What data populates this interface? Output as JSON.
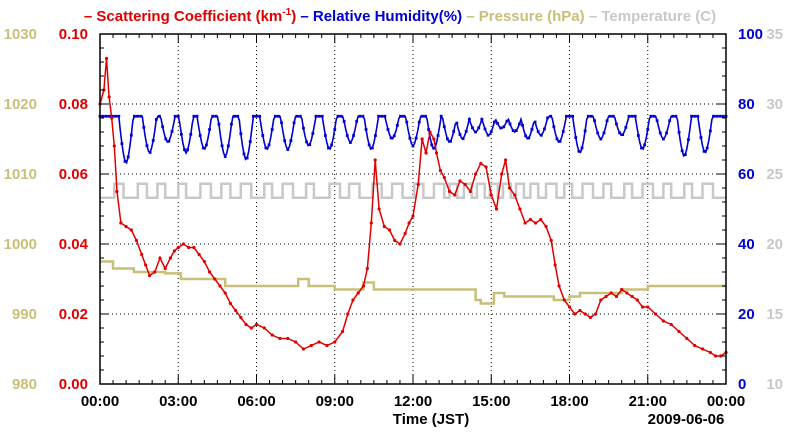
{
  "chart_data": {
    "type": "line",
    "date": "2009-06-06",
    "xlabel": "Time (JST)",
    "x_ticks": [
      "00:00",
      "03:00",
      "06:00",
      "09:00",
      "12:00",
      "15:00",
      "18:00",
      "21:00",
      "00:00"
    ],
    "x_range_hours": [
      0,
      24
    ],
    "grid": true,
    "legend": [
      {
        "prefix": "– ",
        "label": "Scattering Coefficient (km",
        "superscript": "-1",
        "suffix": ")",
        "color": "#e00000"
      },
      {
        "prefix": " – ",
        "label": "Relative Humidity(%)",
        "color": "#0000d0"
      },
      {
        "prefix": " – ",
        "label": "Pressure (hPa)",
        "color": "#c8bf78"
      },
      {
        "prefix": " – ",
        "label": "Temperature (C)",
        "color": "#c8c8c8"
      }
    ],
    "axes": {
      "pressure": {
        "label": "Pressure (hPa)",
        "ticks": [
          "980",
          "990",
          "1000",
          "1010",
          "1020",
          "1030"
        ],
        "range": [
          980,
          1030
        ],
        "color": "#c8bf78"
      },
      "scattering": {
        "label": "Scattering Coefficient (km-1)",
        "ticks": [
          "0.00",
          "0.02",
          "0.04",
          "0.06",
          "0.08",
          "0.10"
        ],
        "range": [
          0,
          0.1
        ],
        "color": "#e00000"
      },
      "humidity": {
        "label": "Relative Humidity(%)",
        "ticks": [
          "0",
          "20",
          "40",
          "60",
          "80",
          "100"
        ],
        "range": [
          0,
          100
        ],
        "color": "#0000d0"
      },
      "temperature": {
        "label": "Temperature (C)",
        "ticks": [
          "10",
          "15",
          "20",
          "25",
          "30",
          "35"
        ],
        "range": [
          10,
          35
        ],
        "color": "#c8c8c8"
      }
    },
    "series": [
      {
        "name": "Scattering Coefficient",
        "axis": "scattering",
        "color": "#e00000",
        "markers": true,
        "points": [
          [
            0.0,
            0.08
          ],
          [
            0.15,
            0.084
          ],
          [
            0.25,
            0.093
          ],
          [
            0.35,
            0.082
          ],
          [
            0.45,
            0.076
          ],
          [
            0.55,
            0.068
          ],
          [
            0.65,
            0.055
          ],
          [
            0.8,
            0.046
          ],
          [
            1.0,
            0.045
          ],
          [
            1.2,
            0.044
          ],
          [
            1.4,
            0.041
          ],
          [
            1.6,
            0.037
          ],
          [
            1.75,
            0.034
          ],
          [
            1.9,
            0.031
          ],
          [
            2.1,
            0.032
          ],
          [
            2.3,
            0.036
          ],
          [
            2.5,
            0.033
          ],
          [
            2.7,
            0.036
          ],
          [
            2.85,
            0.038
          ],
          [
            3.0,
            0.039
          ],
          [
            3.2,
            0.04
          ],
          [
            3.4,
            0.039
          ],
          [
            3.6,
            0.039
          ],
          [
            3.8,
            0.037
          ],
          [
            4.0,
            0.035
          ],
          [
            4.2,
            0.032
          ],
          [
            4.4,
            0.03
          ],
          [
            4.6,
            0.028
          ],
          [
            4.8,
            0.026
          ],
          [
            5.0,
            0.023
          ],
          [
            5.2,
            0.021
          ],
          [
            5.4,
            0.019
          ],
          [
            5.6,
            0.017
          ],
          [
            5.8,
            0.016
          ],
          [
            6.0,
            0.017
          ],
          [
            6.3,
            0.016
          ],
          [
            6.6,
            0.014
          ],
          [
            6.9,
            0.013
          ],
          [
            7.2,
            0.013
          ],
          [
            7.5,
            0.012
          ],
          [
            7.8,
            0.01
          ],
          [
            8.1,
            0.011
          ],
          [
            8.4,
            0.012
          ],
          [
            8.7,
            0.011
          ],
          [
            9.0,
            0.012
          ],
          [
            9.3,
            0.015
          ],
          [
            9.5,
            0.02
          ],
          [
            9.7,
            0.024
          ],
          [
            9.9,
            0.026
          ],
          [
            10.1,
            0.028
          ],
          [
            10.25,
            0.033
          ],
          [
            10.4,
            0.046
          ],
          [
            10.55,
            0.064
          ],
          [
            10.7,
            0.05
          ],
          [
            10.9,
            0.045
          ],
          [
            11.1,
            0.044
          ],
          [
            11.3,
            0.041
          ],
          [
            11.5,
            0.04
          ],
          [
            11.7,
            0.043
          ],
          [
            11.85,
            0.046
          ],
          [
            12.0,
            0.048
          ],
          [
            12.2,
            0.057
          ],
          [
            12.35,
            0.07
          ],
          [
            12.5,
            0.066
          ],
          [
            12.65,
            0.072
          ],
          [
            12.8,
            0.07
          ],
          [
            12.9,
            0.066
          ],
          [
            13.05,
            0.061
          ],
          [
            13.2,
            0.059
          ],
          [
            13.4,
            0.055
          ],
          [
            13.6,
            0.054
          ],
          [
            13.8,
            0.058
          ],
          [
            14.0,
            0.057
          ],
          [
            14.2,
            0.055
          ],
          [
            14.4,
            0.06
          ],
          [
            14.6,
            0.063
          ],
          [
            14.8,
            0.062
          ],
          [
            15.0,
            0.054
          ],
          [
            15.2,
            0.05
          ],
          [
            15.4,
            0.06
          ],
          [
            15.55,
            0.064
          ],
          [
            15.7,
            0.056
          ],
          [
            15.9,
            0.054
          ],
          [
            16.1,
            0.05
          ],
          [
            16.3,
            0.046
          ],
          [
            16.5,
            0.047
          ],
          [
            16.7,
            0.046
          ],
          [
            16.9,
            0.047
          ],
          [
            17.1,
            0.045
          ],
          [
            17.3,
            0.041
          ],
          [
            17.45,
            0.034
          ],
          [
            17.6,
            0.028
          ],
          [
            17.8,
            0.024
          ],
          [
            18.0,
            0.022
          ],
          [
            18.2,
            0.02
          ],
          [
            18.4,
            0.021
          ],
          [
            18.6,
            0.02
          ],
          [
            18.8,
            0.019
          ],
          [
            19.0,
            0.02
          ],
          [
            19.2,
            0.024
          ],
          [
            19.4,
            0.025
          ],
          [
            19.6,
            0.026
          ],
          [
            19.8,
            0.025
          ],
          [
            20.0,
            0.027
          ],
          [
            20.2,
            0.026
          ],
          [
            20.4,
            0.025
          ],
          [
            20.6,
            0.024
          ],
          [
            20.8,
            0.022
          ],
          [
            21.0,
            0.022
          ],
          [
            21.3,
            0.02
          ],
          [
            21.6,
            0.018
          ],
          [
            21.9,
            0.017
          ],
          [
            22.2,
            0.015
          ],
          [
            22.5,
            0.013
          ],
          [
            22.8,
            0.011
          ],
          [
            23.1,
            0.01
          ],
          [
            23.4,
            0.009
          ],
          [
            23.6,
            0.008
          ],
          [
            23.8,
            0.008
          ],
          [
            24.0,
            0.009
          ]
        ]
      },
      {
        "name": "Relative Humidity",
        "axis": "humidity",
        "color": "#0000d0",
        "markers": true,
        "baseline": 76.5,
        "dip_times": [
          1.0,
          1.9,
          2.6,
          3.3,
          4.0,
          4.8,
          5.6,
          6.4,
          7.2,
          8.0,
          8.8,
          9.6,
          10.4,
          11.2,
          12.0,
          12.8,
          13.4,
          13.9,
          14.4,
          14.9,
          15.4,
          15.9,
          16.4,
          16.9,
          17.6,
          18.4,
          19.2,
          20.0,
          20.8,
          21.6,
          22.4,
          23.2
        ],
        "dip_minima": [
          63,
          66,
          69,
          66,
          67,
          65,
          64,
          67,
          67,
          68,
          67,
          69,
          67,
          70,
          68,
          67,
          69,
          70,
          72,
          71,
          73,
          72,
          70,
          71,
          69,
          66,
          70,
          71,
          67,
          70,
          65,
          66
        ],
        "dip_width_hours": 0.55
      },
      {
        "name": "Pressure",
        "axis": "pressure",
        "color": "#c8bf78",
        "markers": false,
        "points": [
          [
            0.0,
            997.5
          ],
          [
            0.5,
            997.5
          ],
          [
            0.5,
            996.5
          ],
          [
            1.3,
            996.5
          ],
          [
            1.3,
            996.0
          ],
          [
            2.5,
            996.0
          ],
          [
            2.5,
            995.8
          ],
          [
            3.1,
            995.8
          ],
          [
            3.1,
            995.0
          ],
          [
            4.8,
            995.0
          ],
          [
            4.8,
            994.0
          ],
          [
            7.6,
            994.0
          ],
          [
            7.6,
            995.0
          ],
          [
            8.0,
            995.0
          ],
          [
            8.0,
            994.0
          ],
          [
            9.0,
            994.0
          ],
          [
            9.0,
            993.5
          ],
          [
            10.1,
            993.5
          ],
          [
            10.1,
            994.5
          ],
          [
            10.5,
            994.5
          ],
          [
            10.5,
            993.5
          ],
          [
            14.4,
            993.5
          ],
          [
            14.4,
            992.0
          ],
          [
            14.6,
            992.0
          ],
          [
            14.6,
            991.5
          ],
          [
            15.1,
            991.5
          ],
          [
            15.1,
            993.0
          ],
          [
            15.5,
            993.0
          ],
          [
            15.5,
            992.5
          ],
          [
            17.4,
            992.5
          ],
          [
            17.4,
            992.0
          ],
          [
            18.0,
            992.0
          ],
          [
            18.0,
            992.5
          ],
          [
            18.4,
            992.5
          ],
          [
            18.4,
            993.0
          ],
          [
            20.0,
            993.0
          ],
          [
            20.0,
            993.5
          ],
          [
            21.0,
            993.5
          ],
          [
            21.0,
            994.0
          ],
          [
            24.0,
            994.0
          ]
        ]
      },
      {
        "name": "Temperature",
        "axis": "temperature",
        "color": "#c8c8c8",
        "markers": false,
        "low": 23.3,
        "high": 24.3,
        "high_intervals": [
          [
            0.55,
            0.9
          ],
          [
            1.45,
            1.8
          ],
          [
            2.2,
            2.5
          ],
          [
            3.0,
            3.3
          ],
          [
            3.85,
            4.25
          ],
          [
            4.65,
            5.0
          ],
          [
            5.4,
            5.8
          ],
          [
            6.3,
            6.6
          ],
          [
            7.0,
            7.4
          ],
          [
            7.9,
            8.2
          ],
          [
            8.8,
            9.2
          ],
          [
            9.55,
            9.95
          ],
          [
            10.45,
            10.8
          ],
          [
            11.2,
            11.6
          ],
          [
            12.05,
            12.4
          ],
          [
            12.8,
            13.2
          ],
          [
            13.4,
            13.7
          ],
          [
            13.95,
            14.25
          ],
          [
            14.45,
            14.75
          ],
          [
            14.95,
            15.25
          ],
          [
            15.45,
            15.75
          ],
          [
            15.95,
            16.25
          ],
          [
            16.5,
            16.8
          ],
          [
            17.1,
            17.5
          ],
          [
            17.8,
            18.1
          ],
          [
            18.5,
            18.9
          ],
          [
            19.3,
            19.6
          ],
          [
            20.1,
            20.4
          ],
          [
            20.8,
            21.2
          ],
          [
            21.6,
            21.9
          ],
          [
            22.4,
            22.7
          ],
          [
            23.1,
            23.5
          ]
        ]
      }
    ]
  }
}
